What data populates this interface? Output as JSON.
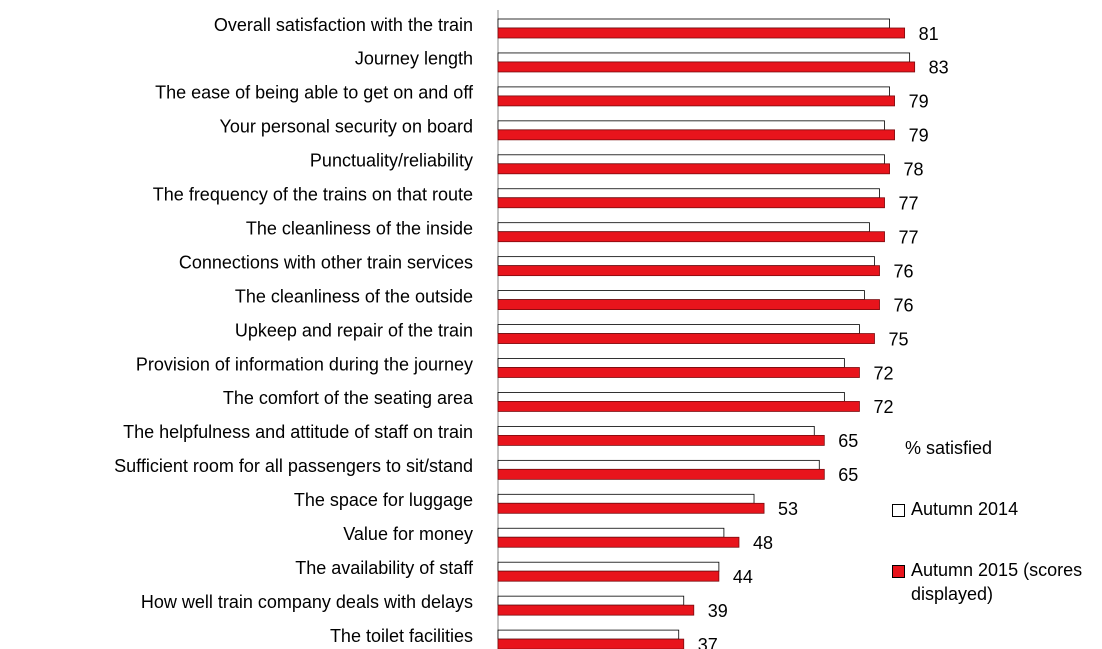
{
  "chart_data": {
    "type": "bar",
    "orientation": "horizontal",
    "legend_title": "% satisfied",
    "categories": [
      "Overall satisfaction with the train",
      "Journey length",
      "The ease of being able to get on and off",
      "Your personal security on board",
      "Punctuality/reliability",
      "The frequency of the trains on that route",
      "The cleanliness of the inside",
      "Connections with other train services",
      "The cleanliness of the outside",
      "Upkeep and repair of the train",
      "Provision of information during the journey",
      "The comfort of the seating area",
      "The helpfulness and attitude of staff on train",
      "Sufficient room for all passengers to sit/stand",
      "The space for luggage",
      "Value for money",
      "The availability of staff",
      "How well train company deals with delays",
      "The toilet facilities"
    ],
    "series": [
      {
        "name": "Autumn 2014",
        "color": "#ffffff",
        "values": [
          78,
          82,
          78,
          77,
          77,
          76,
          74,
          75,
          73,
          72,
          69,
          69,
          63,
          64,
          51,
          45,
          44,
          37,
          36
        ]
      },
      {
        "name": "Autumn 2015 (scores displayed)",
        "color": "#e8141c",
        "values": [
          81,
          83,
          79,
          79,
          78,
          77,
          77,
          76,
          76,
          75,
          72,
          72,
          65,
          65,
          53,
          48,
          44,
          39,
          37
        ],
        "labels_shown": true
      }
    ],
    "legend": "right"
  }
}
